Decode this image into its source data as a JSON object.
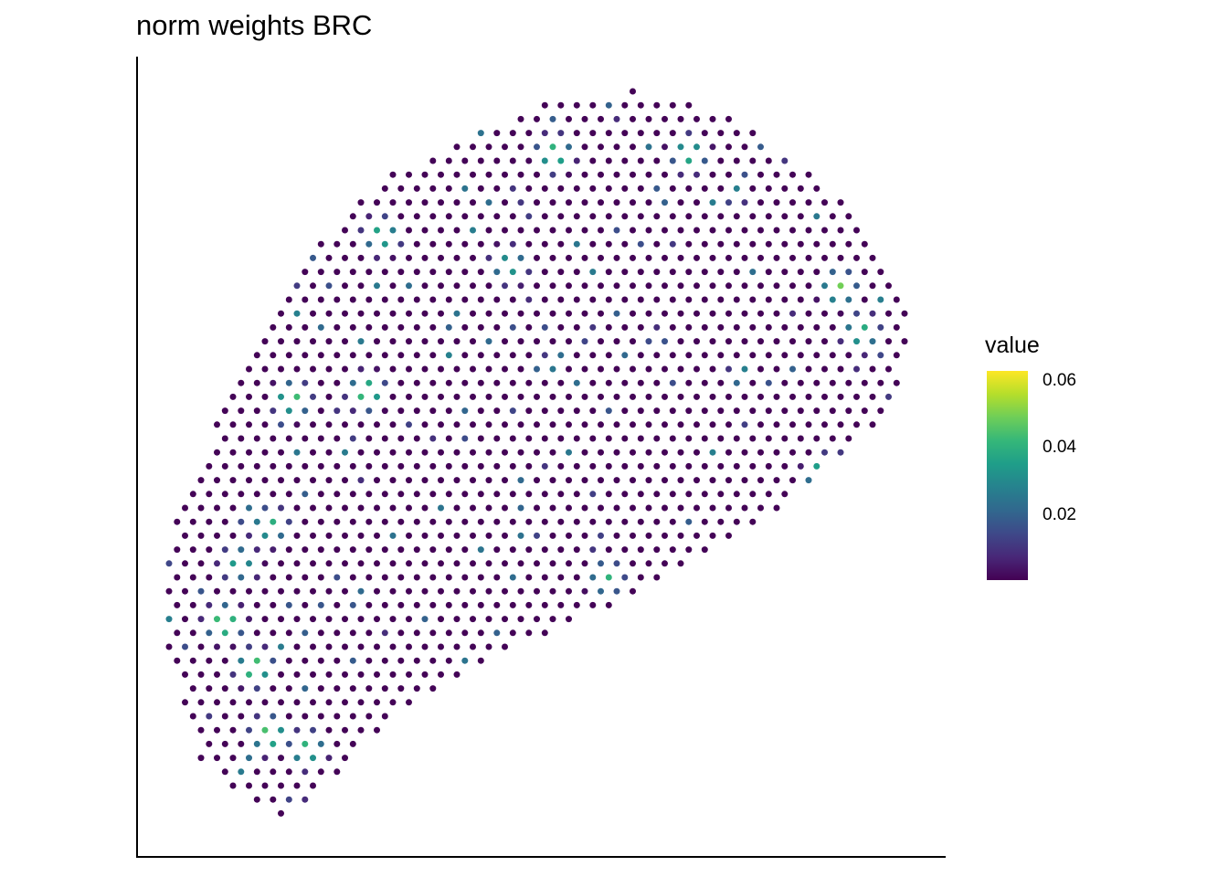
{
  "chart_data": {
    "type": "scatter",
    "title": "norm weights BRC",
    "xlabel": "",
    "ylabel": "",
    "grid": false,
    "legend": {
      "title": "value",
      "placement": "right",
      "type": "colorbar",
      "ticks": [
        "0.02",
        "0.04",
        "0.06"
      ],
      "tick_values": [
        0.02,
        0.04,
        0.06
      ],
      "range": [
        0.0005,
        0.063
      ]
    },
    "colormap": [
      "#440154",
      "#482878",
      "#3e4989",
      "#31688e",
      "#26828e",
      "#1f9e89",
      "#35b779",
      "#6ece58",
      "#b5de2b",
      "#fde725"
    ],
    "xlim": [
      0,
      100
    ],
    "ylim": [
      0,
      100
    ],
    "background_value": 0.001,
    "hotspots": [
      {
        "x": 8,
        "y": 28,
        "v": 0.062
      },
      {
        "x": 12,
        "y": 22,
        "v": 0.06
      },
      {
        "x": 14,
        "y": 13,
        "v": 0.058
      },
      {
        "x": 19,
        "y": 11,
        "v": 0.052
      },
      {
        "x": 10,
        "y": 36,
        "v": 0.045
      },
      {
        "x": 14,
        "y": 41,
        "v": 0.05
      },
      {
        "x": 17,
        "y": 58,
        "v": 0.055
      },
      {
        "x": 27,
        "y": 59,
        "v": 0.058
      },
      {
        "x": 29,
        "y": 80,
        "v": 0.05
      },
      {
        "x": 46,
        "y": 76,
        "v": 0.045
      },
      {
        "x": 52,
        "y": 91,
        "v": 0.055
      },
      {
        "x": 70,
        "y": 91,
        "v": 0.05
      },
      {
        "x": 90,
        "y": 73,
        "v": 0.055
      },
      {
        "x": 93,
        "y": 67,
        "v": 0.05
      },
      {
        "x": 88,
        "y": 48,
        "v": 0.058
      },
      {
        "x": 59,
        "y": 34,
        "v": 0.045
      }
    ],
    "hotspot_radius": 1.8
  }
}
